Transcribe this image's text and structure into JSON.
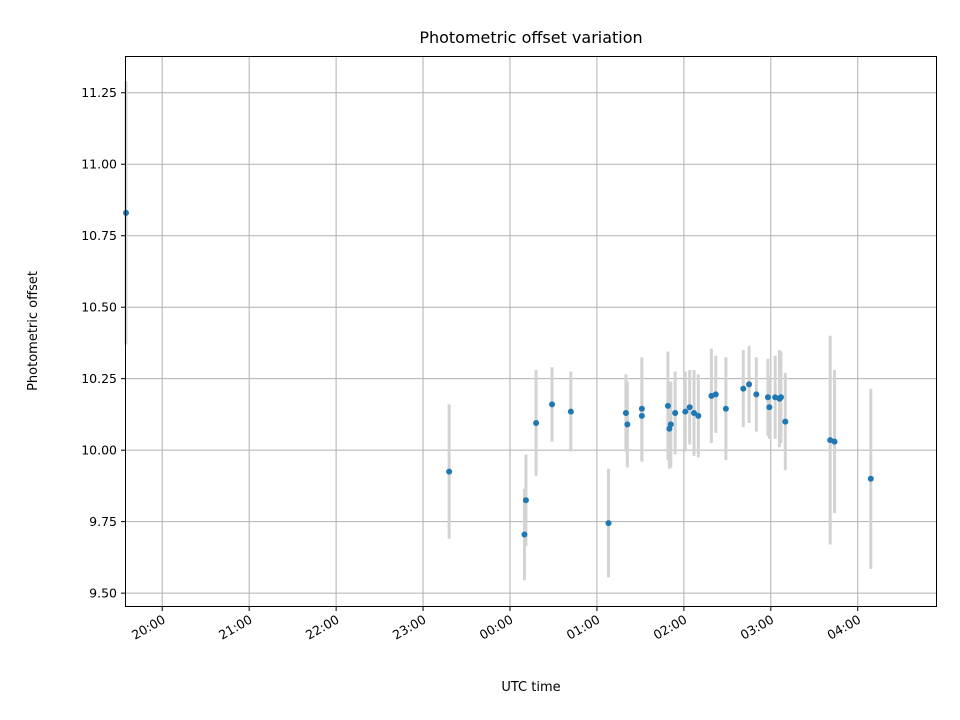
{
  "chart_data": {
    "type": "scatter",
    "title": "Photometric offset variation",
    "xlabel": "UTC time",
    "ylabel": "Photometric offset",
    "x_tick_labels": [
      "20:00",
      "21:00",
      "22:00",
      "23:00",
      "00:00",
      "01:00",
      "02:00",
      "03:00",
      "04:00"
    ],
    "y_tick_labels": [
      "9.50",
      "9.75",
      "10.00",
      "10.25",
      "10.50",
      "10.75",
      "11.00",
      "11.25"
    ],
    "xlim": [
      "19:35",
      "04:54"
    ],
    "ylim": [
      9.455,
      11.375
    ],
    "grid": true,
    "legend": "none",
    "colors": {
      "points": "#1f77b4",
      "errorbars": "#d3d3d3",
      "grid": "#b0b0b0"
    },
    "points": [
      {
        "x": "19:35",
        "y": 10.83,
        "yerr": 0.46
      },
      {
        "x": "23:18",
        "y": 9.925,
        "yerr": 0.235
      },
      {
        "x": "00:10",
        "y": 9.705,
        "yerr": 0.16
      },
      {
        "x": "00:11",
        "y": 9.825,
        "yerr": 0.16
      },
      {
        "x": "00:18",
        "y": 10.095,
        "yerr": 0.185
      },
      {
        "x": "00:29",
        "y": 10.16,
        "yerr": 0.13
      },
      {
        "x": "00:42",
        "y": 10.135,
        "yerr": 0.14
      },
      {
        "x": "01:08",
        "y": 9.745,
        "yerr": 0.19
      },
      {
        "x": "01:20",
        "y": 10.13,
        "yerr": 0.135
      },
      {
        "x": "01:21",
        "y": 10.09,
        "yerr": 0.15
      },
      {
        "x": "01:31",
        "y": 10.145,
        "yerr": 0.18
      },
      {
        "x": "01:31",
        "y": 10.12,
        "yerr": 0.16
      },
      {
        "x": "01:49",
        "y": 10.155,
        "yerr": 0.19
      },
      {
        "x": "01:50",
        "y": 10.075,
        "yerr": 0.14
      },
      {
        "x": "01:51",
        "y": 10.09,
        "yerr": 0.15
      },
      {
        "x": "01:54",
        "y": 10.13,
        "yerr": 0.145
      },
      {
        "x": "02:01",
        "y": 10.135,
        "yerr": 0.14
      },
      {
        "x": "02:04",
        "y": 10.15,
        "yerr": 0.13
      },
      {
        "x": "02:07",
        "y": 10.13,
        "yerr": 0.15
      },
      {
        "x": "02:10",
        "y": 10.12,
        "yerr": 0.145
      },
      {
        "x": "02:19",
        "y": 10.19,
        "yerr": 0.165
      },
      {
        "x": "02:22",
        "y": 10.195,
        "yerr": 0.135
      },
      {
        "x": "02:29",
        "y": 10.145,
        "yerr": 0.18
      },
      {
        "x": "02:41",
        "y": 10.215,
        "yerr": 0.135
      },
      {
        "x": "02:45",
        "y": 10.23,
        "yerr": 0.135
      },
      {
        "x": "02:50",
        "y": 10.195,
        "yerr": 0.13
      },
      {
        "x": "02:58",
        "y": 10.185,
        "yerr": 0.135
      },
      {
        "x": "02:59",
        "y": 10.15,
        "yerr": 0.11
      },
      {
        "x": "03:03",
        "y": 10.185,
        "yerr": 0.145
      },
      {
        "x": "03:06",
        "y": 10.18,
        "yerr": 0.17
      },
      {
        "x": "03:07",
        "y": 10.185,
        "yerr": 0.16
      },
      {
        "x": "03:10",
        "y": 10.1,
        "yerr": 0.17
      },
      {
        "x": "03:41",
        "y": 10.035,
        "yerr": 0.365
      },
      {
        "x": "03:44",
        "y": 10.03,
        "yerr": 0.25
      },
      {
        "x": "04:09",
        "y": 9.9,
        "yerr": 0.315
      }
    ]
  }
}
